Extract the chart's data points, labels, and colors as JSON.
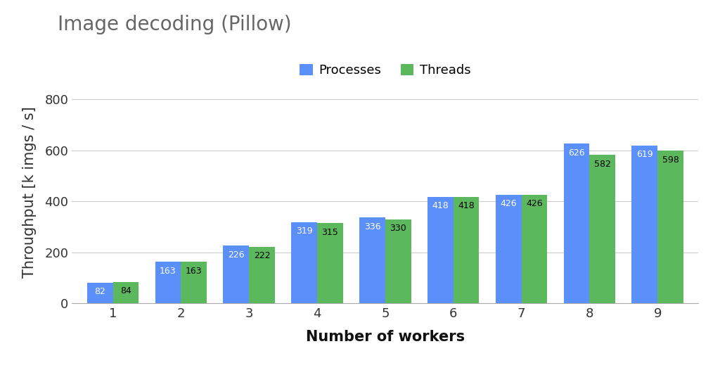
{
  "title": "Image decoding (Pillow)",
  "xlabel": "Number of workers",
  "ylabel": "Throughput [k imgs / s]",
  "workers": [
    1,
    2,
    3,
    4,
    5,
    6,
    7,
    8,
    9
  ],
  "processes": [
    82,
    163,
    226,
    319,
    336,
    418,
    426,
    626,
    619
  ],
  "threads": [
    84,
    163,
    222,
    315,
    330,
    418,
    426,
    582,
    598
  ],
  "processes_color": "#5b8ff9",
  "threads_color": "#5cb85c",
  "background_color": "#ffffff",
  "ylim": [
    0,
    870
  ],
  "yticks": [
    0,
    200,
    400,
    600,
    800
  ],
  "bar_width": 0.38,
  "legend_labels": [
    "Processes",
    "Threads"
  ],
  "title_fontsize": 20,
  "axis_label_fontsize": 15,
  "tick_fontsize": 13,
  "legend_fontsize": 13,
  "bar_label_fontsize": 9,
  "bar_label_color_blue": "#ffffff",
  "bar_label_color_green": "#000000",
  "grid_color": "#cccccc",
  "spine_color": "#aaaaaa"
}
